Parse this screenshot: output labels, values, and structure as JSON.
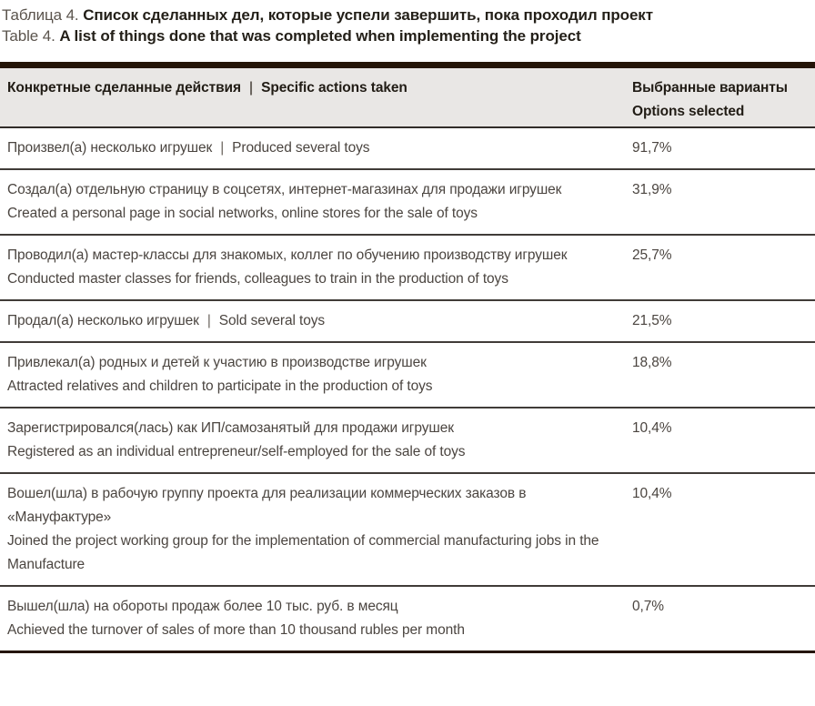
{
  "title": {
    "ru_label": "Таблица 4.",
    "ru_text": "Список сделанных дел, которые успели завершить, пока проходил проект",
    "en_label": "Table 4.",
    "en_text": "A list of things done that was completed when implementing the project"
  },
  "table": {
    "separator": "|",
    "header": {
      "col1_ru": "Конкретные сделанные действия",
      "col1_en": "Specific actions taken",
      "col2_line1": "Выбранные варианты",
      "col2_line2": "Options selected"
    },
    "rows": [
      {
        "ru": "Произвел(а) несколько игрушек",
        "en": "Produced several toys",
        "inline": true,
        "value": "91,7%"
      },
      {
        "ru": "Создал(а) отдельную страницу в соцсетях, интернет-магазинах для продажи игрушек",
        "en": "Created a personal page in social networks, online stores for the sale of toys",
        "inline": false,
        "value": "31,9%"
      },
      {
        "ru": "Проводил(а) мастер-классы для знакомых, коллег по обучению производству игрушек",
        "en": "Conducted master classes for friends, colleagues to train in the production of toys",
        "inline": false,
        "value": "25,7%"
      },
      {
        "ru": "Продал(а) несколько игрушек",
        "en": "Sold several toys",
        "inline": true,
        "value": "21,5%"
      },
      {
        "ru": "Привлекал(а) родных и детей к участию в производстве игрушек",
        "en": "Attracted relatives and children to participate in the production of toys",
        "inline": false,
        "value": "18,8%"
      },
      {
        "ru": "Зарегистрировался(лась) как ИП/самозанятый для продажи игрушек",
        "en": "Registered as an individual entrepreneur/self-employed for the sale of toys",
        "inline": false,
        "value": "10,4%"
      },
      {
        "ru": "Вошел(шла) в рабочую группу проекта для реализации коммерческих заказов в «Мануфактуре»",
        "en": "Joined the project working group for the implementation of commercial manufacturing jobs in the Manufacture",
        "inline": false,
        "value": "10,4%"
      },
      {
        "ru": "Вышел(шла) на обороты продаж более 10 тыс. руб. в месяц",
        "en": "Achieved the turnover of sales of more than 10 thousand rubles per month",
        "inline": false,
        "value": "0,7%"
      }
    ]
  },
  "colors": {
    "accent_dark_brown": "#241508",
    "header_background": "#e9e7e5",
    "body_text": "#4b4540",
    "bold_text": "#242019",
    "row_border": "#403c38"
  }
}
